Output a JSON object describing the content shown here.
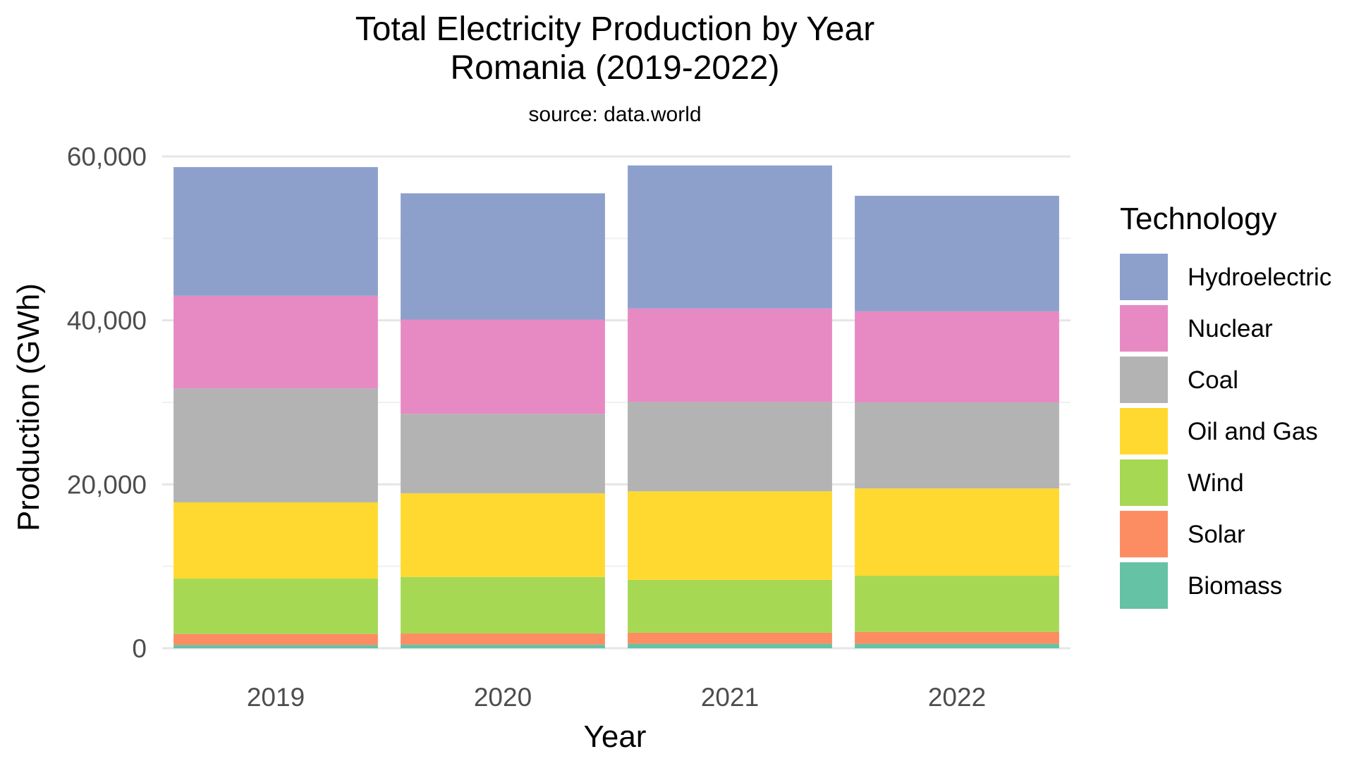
{
  "chart_data": {
    "type": "bar",
    "stacked": true,
    "title": [
      "Total Electricity Production by Year",
      "Romania (2019-2022)"
    ],
    "subtitle": "source: data.world",
    "xlabel": "Year",
    "ylabel": "Production (GWh)",
    "ylim": [
      0,
      60000
    ],
    "yticks": [
      0,
      20000,
      40000,
      60000
    ],
    "ytick_labels": [
      "0",
      "20,000",
      "40,000",
      "60,000"
    ],
    "grid": true,
    "legend": {
      "title": "Technology",
      "placement": "right"
    },
    "categories": [
      "2019",
      "2020",
      "2021",
      "2022"
    ],
    "series": [
      {
        "name": "Biomass",
        "color": "#66C2A5",
        "values": [
          400,
          450,
          550,
          550
        ]
      },
      {
        "name": "Solar",
        "color": "#FC8D62",
        "values": [
          1350,
          1350,
          1350,
          1450
        ]
      },
      {
        "name": "Wind",
        "color": "#A6D854",
        "values": [
          6750,
          6900,
          6450,
          6850
        ]
      },
      {
        "name": "Oil and Gas",
        "color": "#FFD92F",
        "values": [
          9300,
          10200,
          10800,
          10650
        ]
      },
      {
        "name": "Coal",
        "color": "#B3B3B3",
        "values": [
          13900,
          9700,
          10900,
          10500
        ]
      },
      {
        "name": "Nuclear",
        "color": "#E78AC3",
        "values": [
          11300,
          11500,
          11400,
          11100
        ]
      },
      {
        "name": "Hydroelectric",
        "color": "#8DA0CB",
        "values": [
          15700,
          15400,
          17450,
          14100
        ]
      }
    ],
    "legend_order": [
      "Hydroelectric",
      "Nuclear",
      "Coal",
      "Oil and Gas",
      "Wind",
      "Solar",
      "Biomass"
    ]
  }
}
